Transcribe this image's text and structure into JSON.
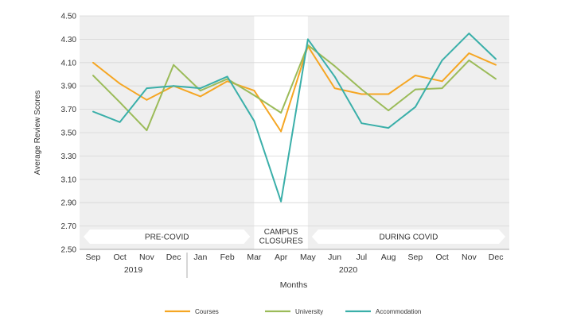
{
  "chart_data": {
    "type": "line",
    "xlabel": "Months",
    "ylabel": "Average Review Scores",
    "ylim": [
      2.5,
      4.5
    ],
    "yticks": [
      "4.50",
      "4.30",
      "4.10",
      "3.90",
      "3.70",
      "3.50",
      "3.30",
      "3.10",
      "2.90",
      "2.70",
      "2.50"
    ],
    "categories": [
      "Sep",
      "Oct",
      "Nov",
      "Dec",
      "Jan",
      "Feb",
      "Mar",
      "Apr",
      "May",
      "Jun",
      "Jul",
      "Aug",
      "Sep",
      "Oct",
      "Nov",
      "Dec"
    ],
    "year_labels": [
      {
        "label": "2019",
        "from": 0,
        "to": 3
      },
      {
        "label": "2020",
        "from": 4,
        "to": 15
      }
    ],
    "periods": [
      {
        "label": "PRE-COVID",
        "from": 0,
        "to": 6,
        "shaded": true
      },
      {
        "label": "CAMPUS CLOSURES",
        "label_lines": [
          "CAMPUS",
          "CLOSURES"
        ],
        "from": 6,
        "to": 8,
        "shaded": false
      },
      {
        "label": "DURING COVID",
        "from": 8,
        "to": 15,
        "shaded": true
      }
    ],
    "series": [
      {
        "name": "Courses",
        "color": "#F5A623",
        "values": [
          4.1,
          3.92,
          3.78,
          3.9,
          3.81,
          3.94,
          3.86,
          3.51,
          4.24,
          3.88,
          3.83,
          3.83,
          3.99,
          3.94,
          4.18,
          4.08
        ]
      },
      {
        "name": "University",
        "color": "#9BBB59",
        "values": [
          3.99,
          3.76,
          3.52,
          4.08,
          3.86,
          3.96,
          3.82,
          3.67,
          4.25,
          4.07,
          3.87,
          3.69,
          3.87,
          3.88,
          4.12,
          3.96
        ]
      },
      {
        "name": "Accommodation",
        "color": "#3AAFA9",
        "values": [
          3.68,
          3.59,
          3.88,
          3.9,
          3.88,
          3.98,
          3.6,
          2.91,
          4.3,
          3.98,
          3.58,
          3.54,
          3.72,
          4.12,
          4.35,
          4.13
        ]
      }
    ],
    "grid": true,
    "legend": "bottom"
  }
}
